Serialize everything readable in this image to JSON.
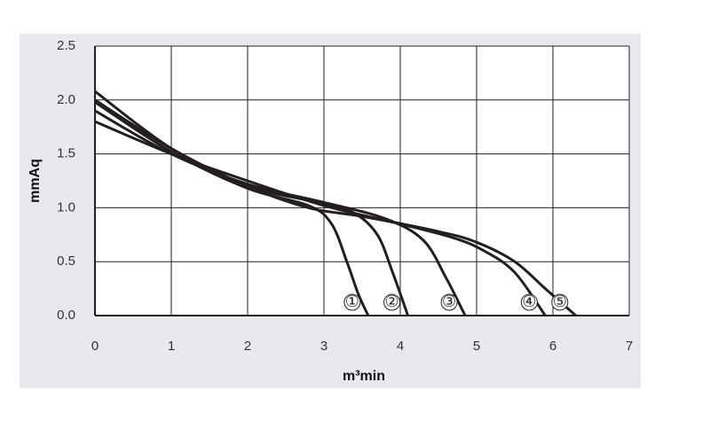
{
  "chart_data": {
    "type": "line",
    "x_label": "m³min",
    "y_label": "mmAq",
    "xlim": [
      0,
      7
    ],
    "ylim": [
      0,
      2.5
    ],
    "xticks": [
      0,
      1,
      2,
      3,
      4,
      5,
      6,
      7
    ],
    "yticks": [
      {
        "value": 0,
        "label": "0.0"
      },
      0.5,
      {
        "value": 1,
        "label": "1.0"
      },
      1.5,
      {
        "value": 2,
        "label": "2.0"
      },
      2.5
    ],
    "grid": true,
    "series": [
      {
        "name": "①",
        "color": "#231f20",
        "x": [
          0,
          1,
          2,
          2.8,
          3.1,
          3.3,
          3.45,
          3.58
        ],
        "values": [
          1.98,
          1.52,
          1.18,
          1.02,
          0.85,
          0.5,
          0.2,
          0
        ]
      },
      {
        "name": "②",
        "color": "#231f20",
        "x": [
          0,
          1,
          2,
          3,
          3.4,
          3.7,
          3.9,
          4.1
        ],
        "values": [
          2.08,
          1.55,
          1.2,
          1.04,
          0.95,
          0.75,
          0.4,
          0
        ]
      },
      {
        "name": "③",
        "color": "#231f20",
        "x": [
          0,
          1,
          2,
          3,
          3.8,
          4.3,
          4.6,
          4.85
        ],
        "values": [
          1.9,
          1.5,
          1.22,
          1.05,
          0.9,
          0.7,
          0.35,
          0
        ]
      },
      {
        "name": "④",
        "color": "#231f20",
        "x": [
          0,
          1,
          2,
          3,
          4,
          4.7,
          5.1,
          5.5,
          5.9
        ],
        "values": [
          1.8,
          1.5,
          1.25,
          1.02,
          0.85,
          0.72,
          0.6,
          0.4,
          0
        ]
      },
      {
        "name": "⑤",
        "color": "#231f20",
        "x": [
          0,
          1,
          2,
          2.8,
          3.5,
          4.5,
          5,
          5.5,
          5.9,
          6.3
        ],
        "values": [
          2.0,
          1.55,
          1.2,
          1.0,
          0.92,
          0.78,
          0.68,
          0.5,
          0.25,
          0
        ]
      }
    ]
  }
}
